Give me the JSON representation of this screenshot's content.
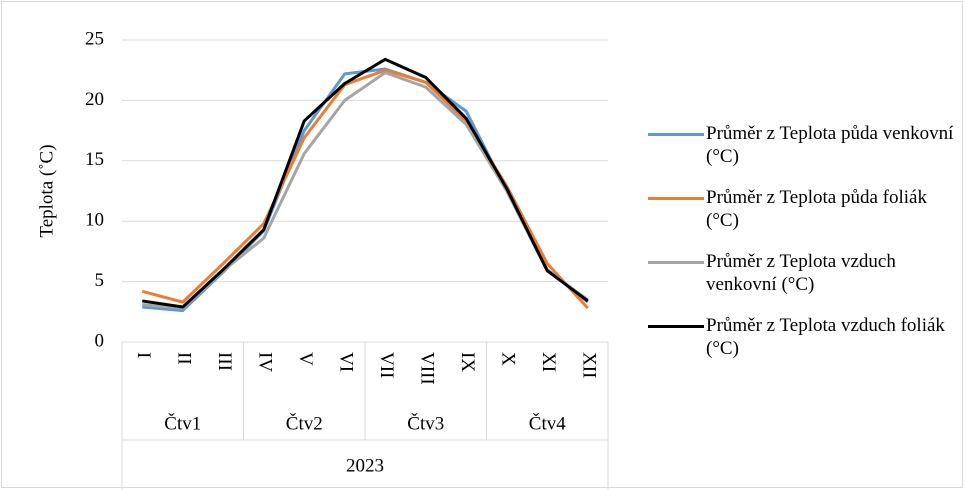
{
  "chart_data": {
    "type": "line",
    "y_label": "Teplota (˚C)",
    "categories": [
      "I",
      "II",
      "III",
      "IV",
      "V",
      "VI",
      "VII",
      "VIII",
      "IX",
      "X",
      "XI",
      "XII"
    ],
    "quarters": [
      "Čtv1",
      "Čtv2",
      "Čtv3",
      "Čtv4"
    ],
    "year": "2023",
    "ylim": [
      0,
      25
    ],
    "yticks": [
      0,
      5,
      10,
      15,
      20,
      25
    ],
    "grid": true,
    "series": [
      {
        "name": "Průměr z Teplota půda venkovní (°C)",
        "color": "#5b9bd5",
        "values": [
          2.9,
          2.6,
          5.8,
          9.2,
          17.5,
          22.2,
          22.6,
          21.5,
          19.1,
          12.5,
          6.0,
          3.3
        ]
      },
      {
        "name": "Průměr z Teplota půda foliák (°C)",
        "color": "#ed7d31",
        "values": [
          4.2,
          3.3,
          6.5,
          9.8,
          16.9,
          21.3,
          22.5,
          21.5,
          18.3,
          12.9,
          6.5,
          2.8
        ]
      },
      {
        "name": "Průměr z Teplota vzduch venkovní (°C)",
        "color": "#a5a5a5",
        "values": [
          3.1,
          2.8,
          5.9,
          8.6,
          15.6,
          20.0,
          22.3,
          21.1,
          18.0,
          12.5,
          5.9,
          3.5
        ]
      },
      {
        "name": "Průměr z Teplota vzduch foliák (°C)",
        "color": "#000000",
        "values": [
          3.4,
          2.9,
          6.0,
          9.3,
          18.3,
          21.4,
          23.4,
          21.9,
          18.5,
          12.7,
          5.9,
          3.4
        ]
      }
    ]
  }
}
